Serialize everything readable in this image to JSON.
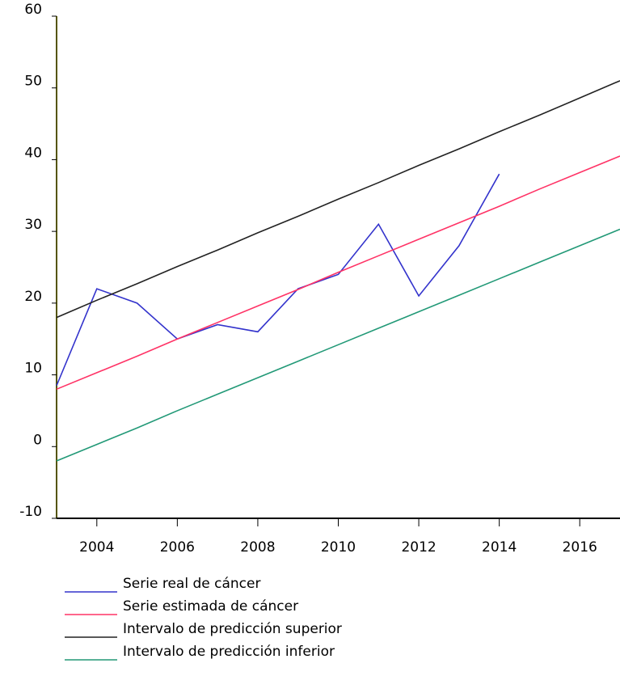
{
  "chart_data": {
    "type": "line",
    "x": [
      2003,
      2004,
      2005,
      2006,
      2007,
      2008,
      2009,
      2010,
      2011,
      2012,
      2013,
      2014,
      2015,
      2016,
      2017
    ],
    "series": [
      {
        "name": "Serie real de cáncer",
        "color": "#3333cc",
        "values": [
          8.5,
          22,
          20,
          15,
          17,
          16,
          22,
          24,
          31,
          21,
          28,
          38,
          null,
          null,
          null
        ]
      },
      {
        "name": "Serie estimada de cáncer",
        "color": "#ff3366",
        "values": [
          8,
          10.3,
          12.6,
          15,
          17.3,
          19.6,
          21.9,
          24.3,
          26.6,
          28.9,
          31.2,
          33.5,
          35.9,
          38.2,
          40.5
        ]
      },
      {
        "name": "Intervalo de predicción superior",
        "color": "#222222",
        "values": [
          18,
          20.4,
          22.7,
          25.1,
          27.4,
          29.8,
          32.1,
          34.5,
          36.8,
          39.2,
          41.5,
          43.9,
          46.2,
          48.6,
          51
        ]
      },
      {
        "name": "Intervalo de predicción inferior",
        "color": "#229977",
        "values": [
          -2,
          0.3,
          2.6,
          5,
          7.3,
          9.6,
          11.9,
          14.2,
          16.5,
          18.8,
          21.1,
          23.4,
          25.7,
          28,
          30.3
        ]
      }
    ],
    "xlim": [
      2003,
      2017
    ],
    "xticks": [
      2004,
      2006,
      2008,
      2010,
      2012,
      2014,
      2016
    ],
    "ylim": [
      -10,
      60
    ],
    "yticks": [
      -10,
      0,
      10,
      20,
      30,
      40,
      50,
      60
    ]
  }
}
